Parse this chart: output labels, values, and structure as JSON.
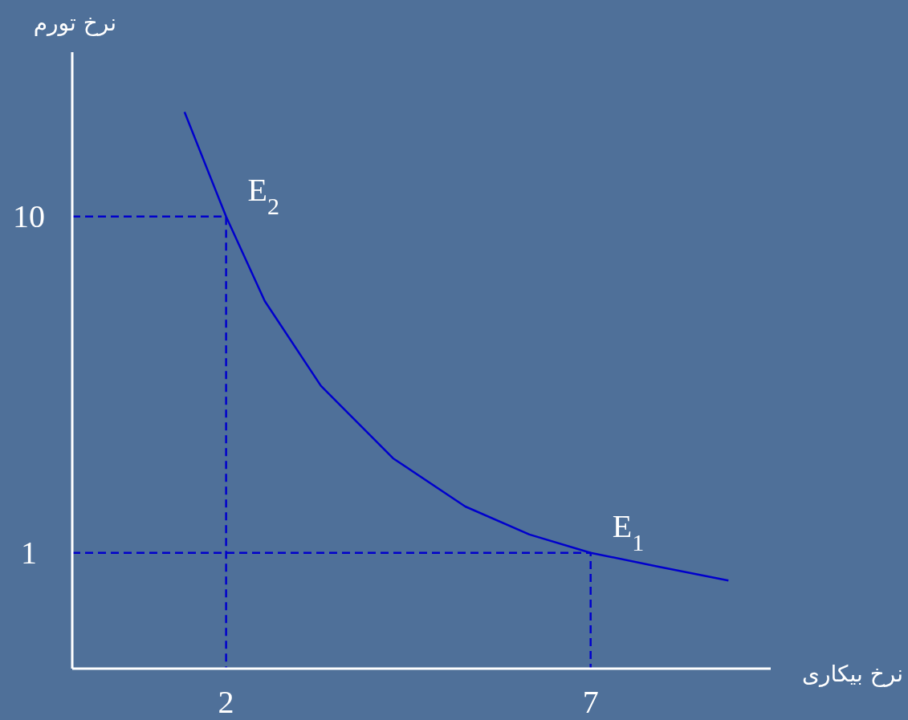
{
  "chart_data": {
    "type": "line",
    "xlabel": "نرخ بیکاری",
    "ylabel": "نرخ تورم",
    "xlim": [
      -0.11,
      9.47
    ],
    "ylim": [
      -2.1,
      14.4
    ],
    "xticks": [
      2,
      7
    ],
    "yticks": [
      1,
      10
    ],
    "series": [
      {
        "color": "#0000cc",
        "x": [
          1.43,
          2,
          2.53,
          3.3,
          4.29,
          5.28,
          6.16,
          7,
          7.93,
          8.89
        ],
        "values": [
          12.8,
          10,
          7.74,
          5.47,
          3.53,
          2.24,
          1.49,
          1,
          0.63,
          0.26
        ]
      },
      {
        "color": "#0000cc",
        "line_style": "dashed",
        "x": [
          -0.11,
          2,
          2
        ],
        "values": [
          10,
          10,
          -2.1
        ]
      },
      {
        "color": "#0000cc",
        "line_style": "dashed",
        "x": [
          -0.11,
          7,
          7
        ],
        "values": [
          1,
          1,
          -2.1
        ]
      }
    ],
    "annotations": [
      {
        "text": "E$_{2}$",
        "x": 2,
        "y": 10
      },
      {
        "text": "E$_{1}$",
        "x": 7,
        "y": 1
      }
    ]
  }
}
